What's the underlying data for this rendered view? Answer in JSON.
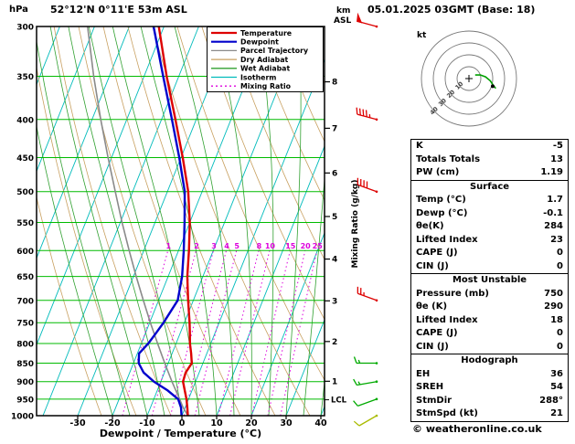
{
  "header": {
    "left_unit": "hPa",
    "station": "52°12'N 0°11'E 53m ASL",
    "datetime": "05.01.2025 03GMT (Base: 18)"
  },
  "axes": {
    "x_label": "Dewpoint / Temperature (°C)",
    "right_label": "Mixing Ratio (g/kg)",
    "km_label_top": "km",
    "km_label_bottom": "ASL",
    "lcl_label": "LCL"
  },
  "colors": {
    "temperature": "#dd0000",
    "dewpoint": "#0000cc",
    "parcel": "#8a8a8a",
    "dry_adiabat": "#c8a060",
    "wet_adiabat": "#30a030",
    "isotherm": "#00bbbb",
    "mixing_ratio": "#dd00dd",
    "pressure_line": "#00bb00"
  },
  "legend": [
    {
      "label": "Temperature",
      "color": "#dd0000",
      "dash": ""
    },
    {
      "label": "Dewpoint",
      "color": "#0000cc",
      "dash": ""
    },
    {
      "label": "Parcel Trajectory",
      "color": "#8a8a8a",
      "dash": ""
    },
    {
      "label": "Dry Adiabat",
      "color": "#c8a060",
      "dash": ""
    },
    {
      "label": "Wet Adiabat",
      "color": "#30a030",
      "dash": ""
    },
    {
      "label": "Isotherm",
      "color": "#00bbbb",
      "dash": ""
    },
    {
      "label": "Mixing Ratio",
      "color": "#dd00dd",
      "dash": "2 3"
    }
  ],
  "chart_data": {
    "type": "skewt",
    "pressure_range": [
      300,
      1000
    ],
    "surface_temp_range": [
      -42,
      41
    ],
    "pressure_ticks": [
      300,
      350,
      400,
      450,
      500,
      550,
      600,
      650,
      700,
      750,
      800,
      850,
      900,
      950,
      1000
    ],
    "temp_ticks": [
      -30,
      -20,
      -10,
      0,
      10,
      20,
      30,
      40
    ],
    "km_ticks": [
      {
        "km": 1,
        "p": 899
      },
      {
        "km": 2,
        "p": 795
      },
      {
        "km": 3,
        "p": 701
      },
      {
        "km": 4,
        "p": 616
      },
      {
        "km": 5,
        "p": 540
      },
      {
        "km": 6,
        "p": 472
      },
      {
        "km": 7,
        "p": 411
      },
      {
        "km": 8,
        "p": 356
      }
    ],
    "lcl_pressure": 952,
    "mixing_ratio_values": [
      1,
      2,
      3,
      4,
      5,
      8,
      10,
      15,
      20,
      25
    ],
    "isotherm_step": 10,
    "temperature_profile": [
      [
        1000,
        1.7
      ],
      [
        975,
        0.6
      ],
      [
        950,
        -0.6
      ],
      [
        925,
        -2.1
      ],
      [
        900,
        -3.6
      ],
      [
        875,
        -3.9
      ],
      [
        850,
        -3.2
      ],
      [
        825,
        -4.5
      ],
      [
        800,
        -6.0
      ],
      [
        775,
        -7.2
      ],
      [
        750,
        -8.5
      ],
      [
        700,
        -11.5
      ],
      [
        650,
        -14.5
      ],
      [
        600,
        -17.0
      ],
      [
        550,
        -20.0
      ],
      [
        500,
        -24.0
      ],
      [
        450,
        -29.5
      ],
      [
        400,
        -36.0
      ],
      [
        350,
        -43.5
      ],
      [
        300,
        -51.5
      ]
    ],
    "dewpoint_profile": [
      [
        1000,
        -0.1
      ],
      [
        975,
        -1.2
      ],
      [
        950,
        -3.0
      ],
      [
        925,
        -7.0
      ],
      [
        900,
        -12.0
      ],
      [
        875,
        -16.0
      ],
      [
        850,
        -18.5
      ],
      [
        825,
        -19.5
      ],
      [
        800,
        -18.0
      ],
      [
        775,
        -17.0
      ],
      [
        750,
        -16.0
      ],
      [
        700,
        -14.5
      ],
      [
        650,
        -16.0
      ],
      [
        600,
        -18.5
      ],
      [
        550,
        -21.5
      ],
      [
        500,
        -25.0
      ],
      [
        450,
        -30.5
      ],
      [
        400,
        -37.0
      ],
      [
        350,
        -44.5
      ],
      [
        300,
        -53.0
      ]
    ],
    "parcel_profile": [
      [
        1000,
        1.7
      ],
      [
        975,
        -0.6
      ],
      [
        952,
        -2.4
      ],
      [
        900,
        -6.8
      ],
      [
        850,
        -11.0
      ],
      [
        800,
        -15.3
      ],
      [
        750,
        -19.8
      ],
      [
        700,
        -24.4
      ],
      [
        650,
        -29.2
      ],
      [
        600,
        -34.2
      ],
      [
        550,
        -39.5
      ],
      [
        500,
        -45.0
      ],
      [
        450,
        -51.0
      ],
      [
        400,
        -57.5
      ],
      [
        350,
        -64.5
      ],
      [
        300,
        -72.0
      ]
    ],
    "wind_barbs": [
      {
        "p": 300,
        "speed": 50,
        "dir": 285,
        "color": "#dd0000"
      },
      {
        "p": 400,
        "speed": 45,
        "dir": 285,
        "color": "#dd0000"
      },
      {
        "p": 500,
        "speed": 40,
        "dir": 290,
        "color": "#dd0000"
      },
      {
        "p": 700,
        "speed": 25,
        "dir": 290,
        "color": "#dd0000"
      },
      {
        "p": 850,
        "speed": 15,
        "dir": 270,
        "color": "#00aa00"
      },
      {
        "p": 900,
        "speed": 15,
        "dir": 260,
        "color": "#00aa00"
      },
      {
        "p": 950,
        "speed": 10,
        "dir": 250,
        "color": "#00aa00"
      },
      {
        "p": 1000,
        "speed": 8,
        "dir": 240,
        "color": "#aabb00"
      }
    ]
  },
  "hodograph": {
    "unit_label": "kt",
    "ring_labels": [
      "10",
      "20",
      "30",
      "40"
    ],
    "trace": [
      {
        "dir": 240,
        "speed": 6
      },
      {
        "dir": 252,
        "speed": 10
      },
      {
        "dir": 264,
        "speed": 14
      },
      {
        "dir": 276,
        "speed": 18
      },
      {
        "dir": 285,
        "speed": 21
      },
      {
        "dir": 290,
        "speed": 24
      }
    ],
    "storm_dir": 288,
    "storm_speed": 21
  },
  "stats": {
    "sections": [
      {
        "title": "",
        "rows": [
          [
            "K",
            "-5"
          ],
          [
            "Totals Totals",
            "13"
          ],
          [
            "PW (cm)",
            "1.19"
          ]
        ]
      },
      {
        "title": "Surface",
        "rows": [
          [
            "Temp (°C)",
            "1.7"
          ],
          [
            "Dewp (°C)",
            "-0.1"
          ],
          [
            "θe(K)",
            "284"
          ],
          [
            "Lifted Index",
            "23"
          ],
          [
            "CAPE (J)",
            "0"
          ],
          [
            "CIN (J)",
            "0"
          ]
        ]
      },
      {
        "title": "Most Unstable",
        "rows": [
          [
            "Pressure (mb)",
            "750"
          ],
          [
            "θe (K)",
            "290"
          ],
          [
            "Lifted Index",
            "18"
          ],
          [
            "CAPE (J)",
            "0"
          ],
          [
            "CIN (J)",
            "0"
          ]
        ]
      },
      {
        "title": "Hodograph",
        "rows": [
          [
            "EH",
            "36"
          ],
          [
            "SREH",
            "54"
          ],
          [
            "StmDir",
            "288°"
          ],
          [
            "StmSpd (kt)",
            "21"
          ]
        ]
      }
    ]
  },
  "footer": {
    "copyright": "© weatheronline.co.uk"
  }
}
